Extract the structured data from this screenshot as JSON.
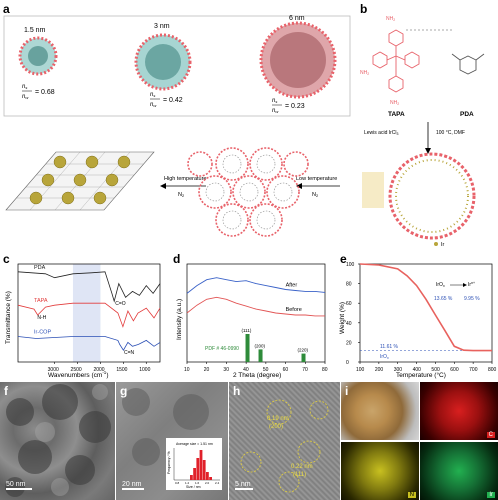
{
  "panel_a": {
    "label": "a",
    "sizes": [
      "1.5 nm",
      "3 nm",
      "6 nm"
    ],
    "ratio_num": "n",
    "ratio_num_sub": "s",
    "ratio_den": "n",
    "ratio_den_sub": "w",
    "ratios": [
      "= 0.68",
      "= 0.42",
      "= 0.23"
    ],
    "high_temp": "High temperature",
    "low_temp": "Low temperature",
    "gas": "N",
    "gas_sub": "2"
  },
  "panel_b": {
    "label": "b",
    "tapa": "TAPA",
    "pda": "PDA",
    "condition_left": "Lewis acid IrCl",
    "condition_left_sub": "3",
    "condition_right": "100 °C, DMF",
    "ir_legend": "Ir",
    "nh2": "NH",
    "nh2_sub": "2"
  },
  "panel_c": {
    "label": "c",
    "ylabel": "Transmittance (%)",
    "xlabel": "Wavenumbers (cm",
    "xlabel_sup": "-1",
    "xlabel_end": ")",
    "series_labels": [
      "PDA",
      "TAPA",
      "Ir-COP"
    ],
    "annotations": [
      "C=O",
      "N-H",
      "C=N"
    ],
    "xticks": [
      "3000",
      "2500",
      "2000",
      "1500",
      "1000"
    ]
  },
  "panel_d": {
    "label": "d",
    "ylabel": "Intensity (a.u.)",
    "xlabel": "2 Theta (degree)",
    "curves": [
      "After",
      "Before"
    ],
    "pdf": "PDF # 46-0990",
    "peaks": [
      "(111)",
      "(200)",
      "(220)"
    ],
    "xticks": [
      "10",
      "20",
      "30",
      "40",
      "50",
      "60",
      "70",
      "80"
    ]
  },
  "panel_e": {
    "label": "e",
    "ylabel": "Weight (%)",
    "xlabel": "Temperature (°C)",
    "legend_a": "IrO",
    "legend_a_sub": "x",
    "legend_b": "Ir",
    "legend_b_sup": "n+",
    "pct1": "13.65 %",
    "pct2": "9.95 %",
    "pct3": "11.61 %",
    "irox": "IrO",
    "irox_sub": "x",
    "yticks": [
      "100",
      "80",
      "60",
      "40",
      "20",
      "0"
    ],
    "xticks": [
      "100",
      "200",
      "300",
      "400",
      "500",
      "600",
      "700",
      "800"
    ]
  },
  "panel_f": {
    "label": "f",
    "scale": "50 nm"
  },
  "panel_g": {
    "label": "g",
    "scale": "20 nm",
    "hist_title": "Average size = 1.51 nm",
    "hist_xlabel": "Size / nm",
    "hist_ylabel": "Frequency / %",
    "hist_xticks": [
      "0.8",
      "1.2",
      "1.6",
      "2.0",
      "2.4"
    ],
    "gas": ""
  },
  "panel_h": {
    "label": "h",
    "scale": "5 nm",
    "d1": "0.19 nm",
    "p1": "(200)",
    "d2": "0.22 nm",
    "p2": "(111)"
  },
  "panel_i": {
    "label": "i",
    "maps": [
      "C",
      "N",
      "Ir"
    ]
  },
  "colors": {
    "pink": "#e8626a",
    "ftir_pda": "#222222",
    "ftir_tapa": "#e23a3a",
    "ftir_ircop": "#2b4fb5",
    "xrd_after": "#3a62c8",
    "xrd_before": "#e25555",
    "tga": "#e8625e",
    "pdf_green": "#2e8b3a",
    "ir_ball": "#b8a53a",
    "map_c": "#d81f1f",
    "map_n": "#c8c020",
    "map_ir": "#22b050"
  },
  "chart_data": [
    {
      "type": "line",
      "panel": "c",
      "xlabel": "Wavenumbers (cm-1)",
      "ylabel": "Transmittance (%)",
      "xlim": [
        3800,
        700
      ],
      "grid": false,
      "series": [
        {
          "name": "PDA",
          "x": [
            3800,
            3200,
            3000,
            2600,
            2200,
            1900,
            1750,
            1700,
            1600,
            1450,
            1300,
            1150,
            1000,
            850,
            700
          ],
          "y": [
            0.92,
            0.9,
            0.86,
            0.9,
            0.91,
            0.92,
            0.7,
            0.62,
            0.8,
            0.66,
            0.72,
            0.68,
            0.78,
            0.7,
            0.8
          ]
        },
        {
          "name": "TAPA",
          "x": [
            3800,
            3450,
            3370,
            3200,
            3000,
            2600,
            2200,
            1900,
            1620,
            1510,
            1400,
            1280,
            1180,
            1000,
            830,
            700
          ],
          "y": [
            0.58,
            0.54,
            0.48,
            0.56,
            0.58,
            0.6,
            0.6,
            0.6,
            0.5,
            0.36,
            0.52,
            0.42,
            0.5,
            0.55,
            0.45,
            0.55
          ]
        },
        {
          "name": "Ir-COP",
          "x": [
            3800,
            3400,
            3000,
            2600,
            2200,
            1900,
            1620,
            1580,
            1500,
            1400,
            1300,
            1170,
            1000,
            830,
            700
          ],
          "y": [
            0.26,
            0.24,
            0.25,
            0.26,
            0.26,
            0.26,
            0.22,
            0.18,
            0.12,
            0.2,
            0.16,
            0.18,
            0.22,
            0.16,
            0.2
          ]
        }
      ],
      "highlight_band": [
        2600,
        2000
      ]
    },
    {
      "type": "line",
      "panel": "d",
      "xlabel": "2 Theta (degree)",
      "ylabel": "Intensity (a.u.)",
      "xlim": [
        10,
        80
      ],
      "grid": false,
      "series": [
        {
          "name": "After",
          "x": [
            10,
            15,
            20,
            25,
            30,
            35,
            40,
            45,
            50,
            55,
            60,
            65,
            70,
            75,
            80
          ],
          "y": [
            0.7,
            0.78,
            0.84,
            0.86,
            0.84,
            0.82,
            0.83,
            0.8,
            0.78,
            0.76,
            0.74,
            0.73,
            0.72,
            0.72,
            0.71
          ]
        },
        {
          "name": "Before",
          "x": [
            10,
            15,
            20,
            25,
            30,
            35,
            40,
            45,
            50,
            55,
            60,
            65,
            70,
            75,
            80
          ],
          "y": [
            0.5,
            0.58,
            0.64,
            0.66,
            0.64,
            0.6,
            0.57,
            0.54,
            0.52,
            0.5,
            0.49,
            0.48,
            0.48,
            0.47,
            0.47
          ]
        }
      ],
      "reference_peaks": {
        "name": "PDF # 46-0990",
        "x": [
          40.7,
          47.3,
          69.1
        ],
        "height": [
          1.0,
          0.45,
          0.3
        ],
        "labels": [
          "(111)",
          "(200)",
          "(220)"
        ]
      }
    },
    {
      "type": "line",
      "panel": "e",
      "xlabel": "Temperature (°C)",
      "ylabel": "Weight (%)",
      "xlim": [
        100,
        800
      ],
      "ylim": [
        0,
        100
      ],
      "grid": false,
      "series": [
        {
          "name": "",
          "x": [
            100,
            200,
            300,
            350,
            400,
            450,
            500,
            550,
            600,
            650,
            700,
            800
          ],
          "y": [
            100,
            99,
            95,
            88,
            78,
            64,
            48,
            32,
            16,
            12,
            11.6,
            11.6
          ]
        }
      ],
      "reference_line": 11.61
    },
    {
      "type": "bar",
      "panel": "g-inset",
      "xlabel": "Size / nm",
      "ylabel": "Frequency / %",
      "categories": [
        "1.2",
        "1.3",
        "1.4",
        "1.5",
        "1.6",
        "1.7",
        "1.8"
      ],
      "values": [
        5,
        12,
        22,
        30,
        20,
        8,
        3
      ],
      "title": "Average size = 1.51 nm"
    }
  ]
}
